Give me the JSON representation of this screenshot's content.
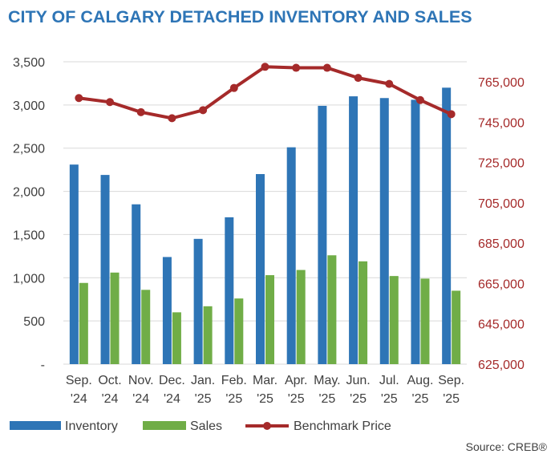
{
  "chart_data": {
    "type": "bar",
    "title": "CITY OF CALGARY DETACHED INVENTORY AND SALES",
    "categories": [
      [
        "Sep.",
        "'24"
      ],
      [
        "Oct.",
        "'24"
      ],
      [
        "Nov.",
        "'24"
      ],
      [
        "Dec.",
        "'24"
      ],
      [
        "Jan.",
        "'25"
      ],
      [
        "Feb.",
        "'25"
      ],
      [
        "Mar.",
        "'25"
      ],
      [
        "Apr.",
        "'25"
      ],
      [
        "May.",
        "'25"
      ],
      [
        "Jun.",
        "'25"
      ],
      [
        "Jul.",
        "'25"
      ],
      [
        "Aug.",
        "'25"
      ],
      [
        "Sep.",
        "'25"
      ]
    ],
    "series": [
      {
        "name": "Inventory",
        "type": "bar",
        "axis": "left",
        "color": "#2E75B6",
        "values": [
          2310,
          2190,
          1850,
          1240,
          1450,
          1700,
          2200,
          2510,
          2990,
          3100,
          3080,
          3060,
          3200
        ]
      },
      {
        "name": "Sales",
        "type": "bar",
        "axis": "left",
        "color": "#70AD47",
        "values": [
          940,
          1060,
          860,
          600,
          670,
          760,
          1030,
          1090,
          1260,
          1190,
          1020,
          990,
          850
        ]
      },
      {
        "name": "Benchmark Price",
        "type": "line",
        "axis": "right",
        "color": "#A52A2A",
        "values": [
          757000,
          755000,
          750000,
          747000,
          751000,
          762000,
          772500,
          772000,
          772000,
          767000,
          764000,
          756000,
          749000
        ]
      }
    ],
    "left_axis": {
      "min": 0,
      "max": 3500,
      "step": 500,
      "tick_labels": [
        "-",
        "500",
        "1,000",
        "1,500",
        "2,000",
        "2,500",
        "3,000",
        "3,500"
      ]
    },
    "right_axis": {
      "min": 625000,
      "max": 775000,
      "step": 20000,
      "tick_labels": [
        "625,000",
        "645,000",
        "665,000",
        "685,000",
        "705,000",
        "725,000",
        "745,000",
        "765,000"
      ],
      "color": "#A52A2A"
    },
    "grid": true,
    "legend_position": "bottom-left",
    "source": "Source: CREB®"
  },
  "colors": {
    "title": "#2E75B6",
    "grid": "#d9d9d9",
    "text": "#404040"
  }
}
